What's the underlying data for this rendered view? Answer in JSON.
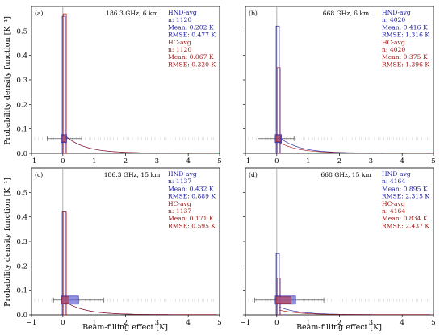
{
  "colors": {
    "hnd": "#1a1aa0",
    "hc": "#a01515",
    "hnd_box": "#6464d8",
    "hc_box": "#b04a6a",
    "axis": "#000000",
    "vline": "#9a9a9a"
  },
  "labels": {
    "ylabel": "Probability density function [K⁻¹]",
    "xlabel": "Beam-filling effect [K]"
  },
  "chart_data": [
    {
      "type": "bar",
      "panel": "(a)",
      "title": "186.3 GHz, 6 km",
      "xlim": [
        -1,
        5
      ],
      "ylim": [
        0,
        0.6
      ],
      "x_ticks": [
        "−1",
        "0",
        "1",
        "2",
        "3",
        "4",
        "5"
      ],
      "y_ticks": [
        "0.0",
        "0.1",
        "0.2",
        "0.3",
        "0.4",
        "0.5"
      ],
      "hnd": {
        "label": "HND-avg",
        "n": "n: 1120",
        "mean": "Mean: 0.202 K",
        "rmse": "RMSE: 0.477 K",
        "peak": 0.56,
        "box": [
          -0.05,
          0.12
        ],
        "whisker": [
          -0.5,
          0.6
        ]
      },
      "hc": {
        "label": "HC-avg",
        "n": "n: 1120",
        "mean": "Mean: 0.067 K",
        "rmse": "RMSE: 0.320 K",
        "peak": 0.57,
        "box": [
          -0.02,
          0.08
        ],
        "whisker": [
          -0.3,
          0.35
        ]
      },
      "box_level": 0.06
    },
    {
      "type": "bar",
      "panel": "(b)",
      "title": "668 GHz, 6 km",
      "xlim": [
        -1,
        5
      ],
      "ylim": [
        0,
        0.6
      ],
      "x_ticks": [
        "−1",
        "0",
        "1",
        "2",
        "3",
        "4",
        "5"
      ],
      "y_ticks": [
        "0.0",
        "0.1",
        "0.2",
        "0.3",
        "0.4",
        "0.5"
      ],
      "hnd": {
        "label": "HND-avg",
        "n": "n: 4020",
        "mean": "Mean: 0.416 K",
        "rmse": "RMSE: 1.316 K",
        "peak": 0.52,
        "box": [
          -0.05,
          0.15
        ],
        "whisker": [
          -0.6,
          0.55
        ]
      },
      "hc": {
        "label": "HC-avg",
        "n": "n: 4020",
        "mean": "Mean: 0.375 K",
        "rmse": "RMSE: 1.396 K",
        "peak": 0.35,
        "box": [
          -0.02,
          0.12
        ],
        "whisker": [
          -0.4,
          0.5
        ]
      },
      "box_level": 0.06
    },
    {
      "type": "bar",
      "panel": "(c)",
      "title": "186.3 GHz, 15 km",
      "xlim": [
        -1,
        5
      ],
      "ylim": [
        0,
        0.6
      ],
      "x_ticks": [
        "−1",
        "0",
        "1",
        "2",
        "3",
        "4",
        "5"
      ],
      "y_ticks": [
        "0.0",
        "0.1",
        "0.2",
        "0.3",
        "0.4",
        "0.5"
      ],
      "hnd": {
        "label": "HND-avg",
        "n": "n: 1137",
        "mean": "Mean: 0.432 K",
        "rmse": "RMSE: 0.889 K",
        "peak": 0.42,
        "box": [
          -0.05,
          0.5
        ],
        "whisker": [
          -0.3,
          1.3
        ]
      },
      "hc": {
        "label": "HC-avg",
        "n": "n: 1137",
        "mean": "Mean: 0.171 K",
        "rmse": "RMSE: 0.595 K",
        "peak": 0.42,
        "box": [
          -0.03,
          0.2
        ],
        "whisker": [
          -0.2,
          0.5
        ]
      },
      "box_level": 0.06
    },
    {
      "type": "bar",
      "panel": "(d)",
      "title": "668 GHz, 15 km",
      "xlim": [
        -1,
        5
      ],
      "ylim": [
        0,
        0.6
      ],
      "x_ticks": [
        "−1",
        "0",
        "1",
        "2",
        "3",
        "4",
        "5"
      ],
      "y_ticks": [
        "0.0",
        "0.1",
        "0.2",
        "0.3",
        "0.4",
        "0.5"
      ],
      "hnd": {
        "label": "HND-avg",
        "n": "n: 4164",
        "mean": "Mean: 0.895 K",
        "rmse": "RMSE: 2.315 K",
        "peak": 0.25,
        "box": [
          -0.05,
          0.6
        ],
        "whisker": [
          -0.7,
          1.5
        ]
      },
      "hc": {
        "label": "HC-avg",
        "n": "n: 4164",
        "mean": "Mean: 0.834 K",
        "rmse": "RMSE: 2.437 K",
        "peak": 0.15,
        "box": [
          -0.02,
          0.45
        ],
        "whisker": [
          -0.5,
          1.2
        ]
      },
      "box_level": 0.06
    }
  ]
}
